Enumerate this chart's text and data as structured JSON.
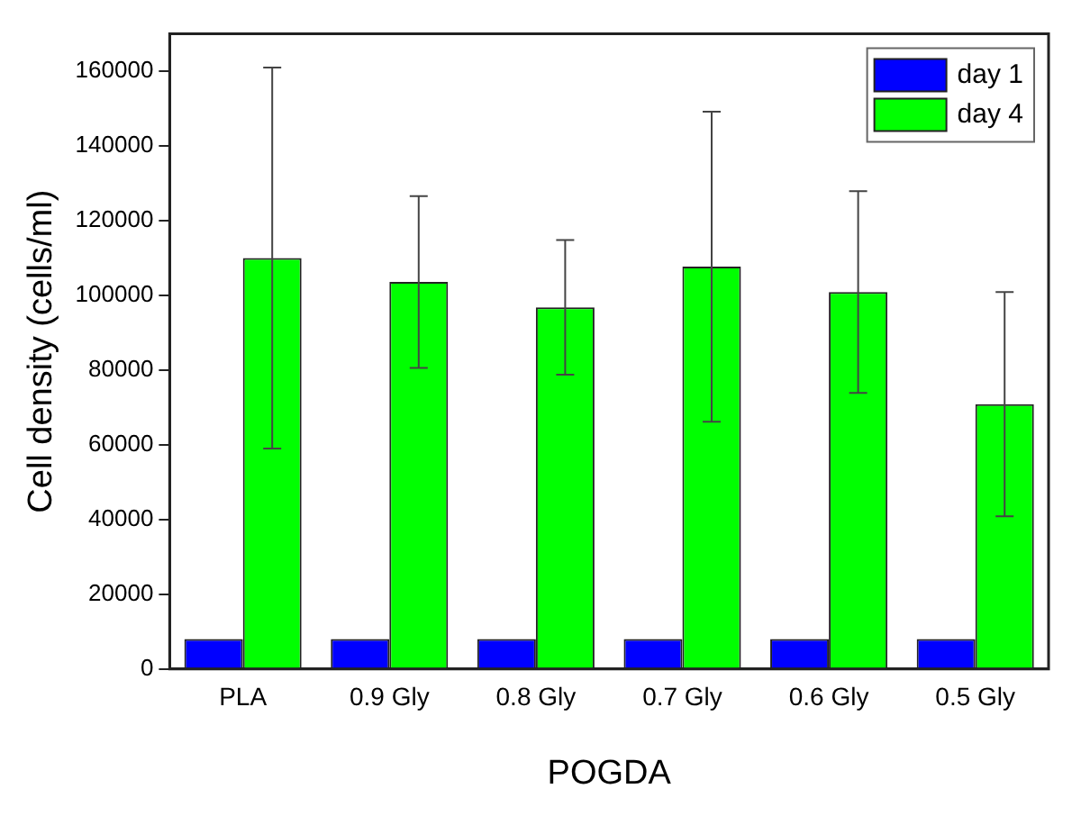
{
  "chart_data": {
    "type": "bar",
    "xlabel": "POGDA",
    "ylabel": "Cell density (cells/ml)",
    "categories": [
      "PLA",
      "0.9 Gly",
      "0.8 Gly",
      "0.7 Gly",
      "0.6 Gly",
      "0.5 Gly"
    ],
    "series": [
      {
        "name": "day 1",
        "color": "#0000ff",
        "values": [
          8000,
          8000,
          8000,
          8000,
          8000,
          8000
        ]
      },
      {
        "name": "day 4",
        "color": "#00ff00",
        "values": [
          110000,
          103600,
          96800,
          107700,
          100900,
          70900
        ],
        "errors": [
          51000,
          23000,
          18000,
          41500,
          27000,
          30000
        ]
      }
    ],
    "ylim": [
      0,
      170000
    ],
    "yticks": [
      0,
      20000,
      40000,
      60000,
      80000,
      100000,
      120000,
      140000,
      160000
    ],
    "grid": false,
    "legend": "top right"
  }
}
